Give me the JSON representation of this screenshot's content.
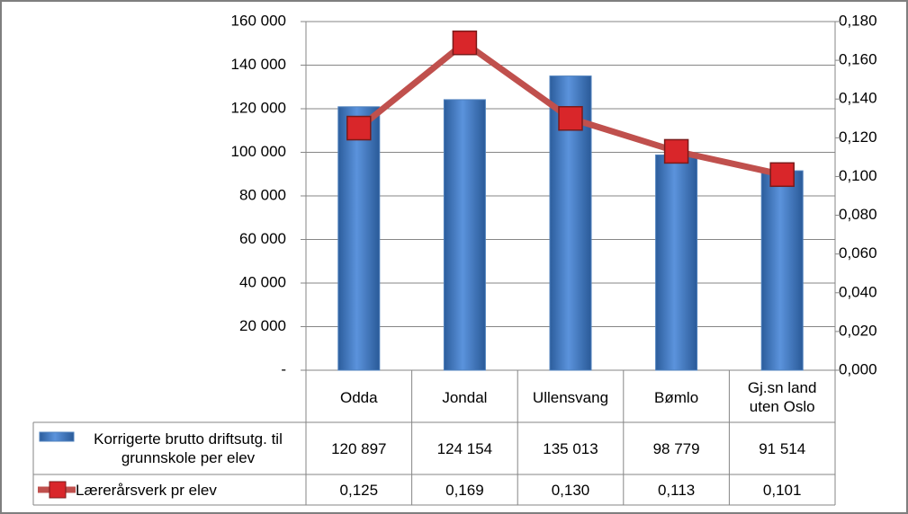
{
  "chart_data": {
    "type": "bar-line",
    "categories": [
      "Odda",
      "Jondal",
      "Ullensvang",
      "Bømlo",
      "Gj.sn land uten Oslo"
    ],
    "series": [
      {
        "name": "Korrigerte brutto driftsutg. til grunnskole per elev",
        "type": "bar",
        "color": "#4f81bd",
        "values": [
          120897,
          124154,
          135013,
          98779,
          91514
        ],
        "value_labels": [
          "120 897",
          "124 154",
          "135 013",
          "98 779",
          "91 514"
        ]
      },
      {
        "name": "Lærerårsverk pr elev",
        "type": "line",
        "axis": "y2",
        "color": "#c0504d",
        "values": [
          0.125,
          0.169,
          0.13,
          0.113,
          0.101
        ],
        "value_labels": [
          "0,125",
          "0,169",
          "0,130",
          "0,113",
          "0,101"
        ]
      }
    ],
    "ylim": [
      0,
      160000
    ],
    "yticks": [
      {
        "value": 0,
        "label": "-"
      },
      {
        "value": 20000,
        "label": "20 000"
      },
      {
        "value": 40000,
        "label": "40 000"
      },
      {
        "value": 60000,
        "label": "60 000"
      },
      {
        "value": 80000,
        "label": "80 000"
      },
      {
        "value": 100000,
        "label": "100 000"
      },
      {
        "value": 120000,
        "label": "120 000"
      },
      {
        "value": 140000,
        "label": "140 000"
      },
      {
        "value": 160000,
        "label": "160 000"
      }
    ],
    "y2lim": [
      0,
      0.18
    ],
    "y2ticks": [
      {
        "value": 0,
        "label": "0,000"
      },
      {
        "value": 0.02,
        "label": "0,020"
      },
      {
        "value": 0.04,
        "label": "0,040"
      },
      {
        "value": 0.06,
        "label": "0,060"
      },
      {
        "value": 0.08,
        "label": "0,080"
      },
      {
        "value": 0.1,
        "label": "0,100"
      },
      {
        "value": 0.12,
        "label": "0,120"
      },
      {
        "value": 0.14,
        "label": "0,140"
      },
      {
        "value": 0.16,
        "label": "0,160"
      },
      {
        "value": 0.18,
        "label": "0,180"
      }
    ],
    "grid": true,
    "legend": "data-table"
  }
}
